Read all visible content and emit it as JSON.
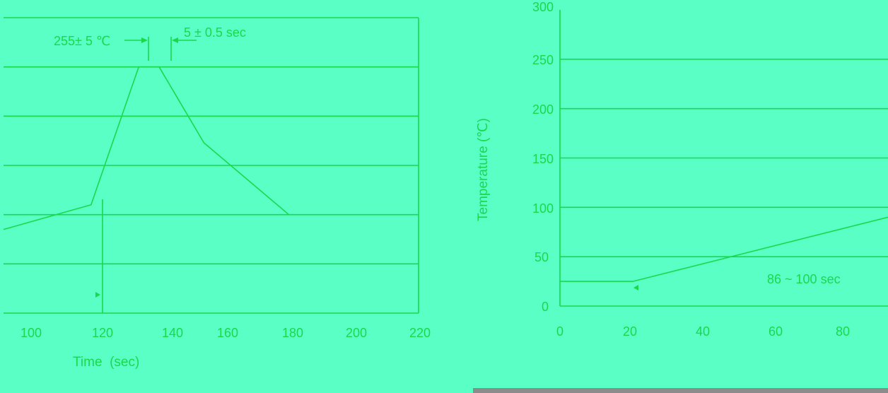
{
  "colors": {
    "background": "#5affc6",
    "line": "#19d94a",
    "bottom_bar": "#8c8c8c"
  },
  "chart_data": [
    {
      "type": "line",
      "title": "",
      "xlabel": "Time  (sec)",
      "ylabel": "",
      "xlim": [
        93,
        221
      ],
      "ylim": [
        0,
        300
      ],
      "x_ticks": [
        "100",
        "120",
        "140",
        "160",
        "180",
        "200",
        "220"
      ],
      "grid": true,
      "series": [
        {
          "x": [
            93,
            120,
            134.7,
            141,
            154.8,
            181
          ],
          "y": [
            85,
            110,
            250,
            250,
            173,
            100
          ]
        }
      ],
      "annotations": [
        {
          "text": "255± 5 ℃",
          "x": 134.7,
          "y": 270
        },
        {
          "text": "5 ± 0.5 sec",
          "x": 141,
          "y": 278
        }
      ]
    },
    {
      "type": "line",
      "title": "",
      "xlabel": "",
      "ylabel": "Temperature (℃)",
      "xlim": [
        0,
        90
      ],
      "ylim": [
        0,
        300
      ],
      "x_ticks": [
        "0",
        "20",
        "40",
        "60",
        "80"
      ],
      "y_ticks": [
        "0",
        "50",
        "100",
        "150",
        "200",
        "250",
        "300"
      ],
      "grid": true,
      "series": [
        {
          "x": [
            0,
            20,
            90
          ],
          "y": [
            25,
            25,
            90
          ]
        }
      ],
      "annotations": [
        {
          "text": "86 ~ 100 sec",
          "x": 75,
          "y": 28
        }
      ]
    }
  ]
}
